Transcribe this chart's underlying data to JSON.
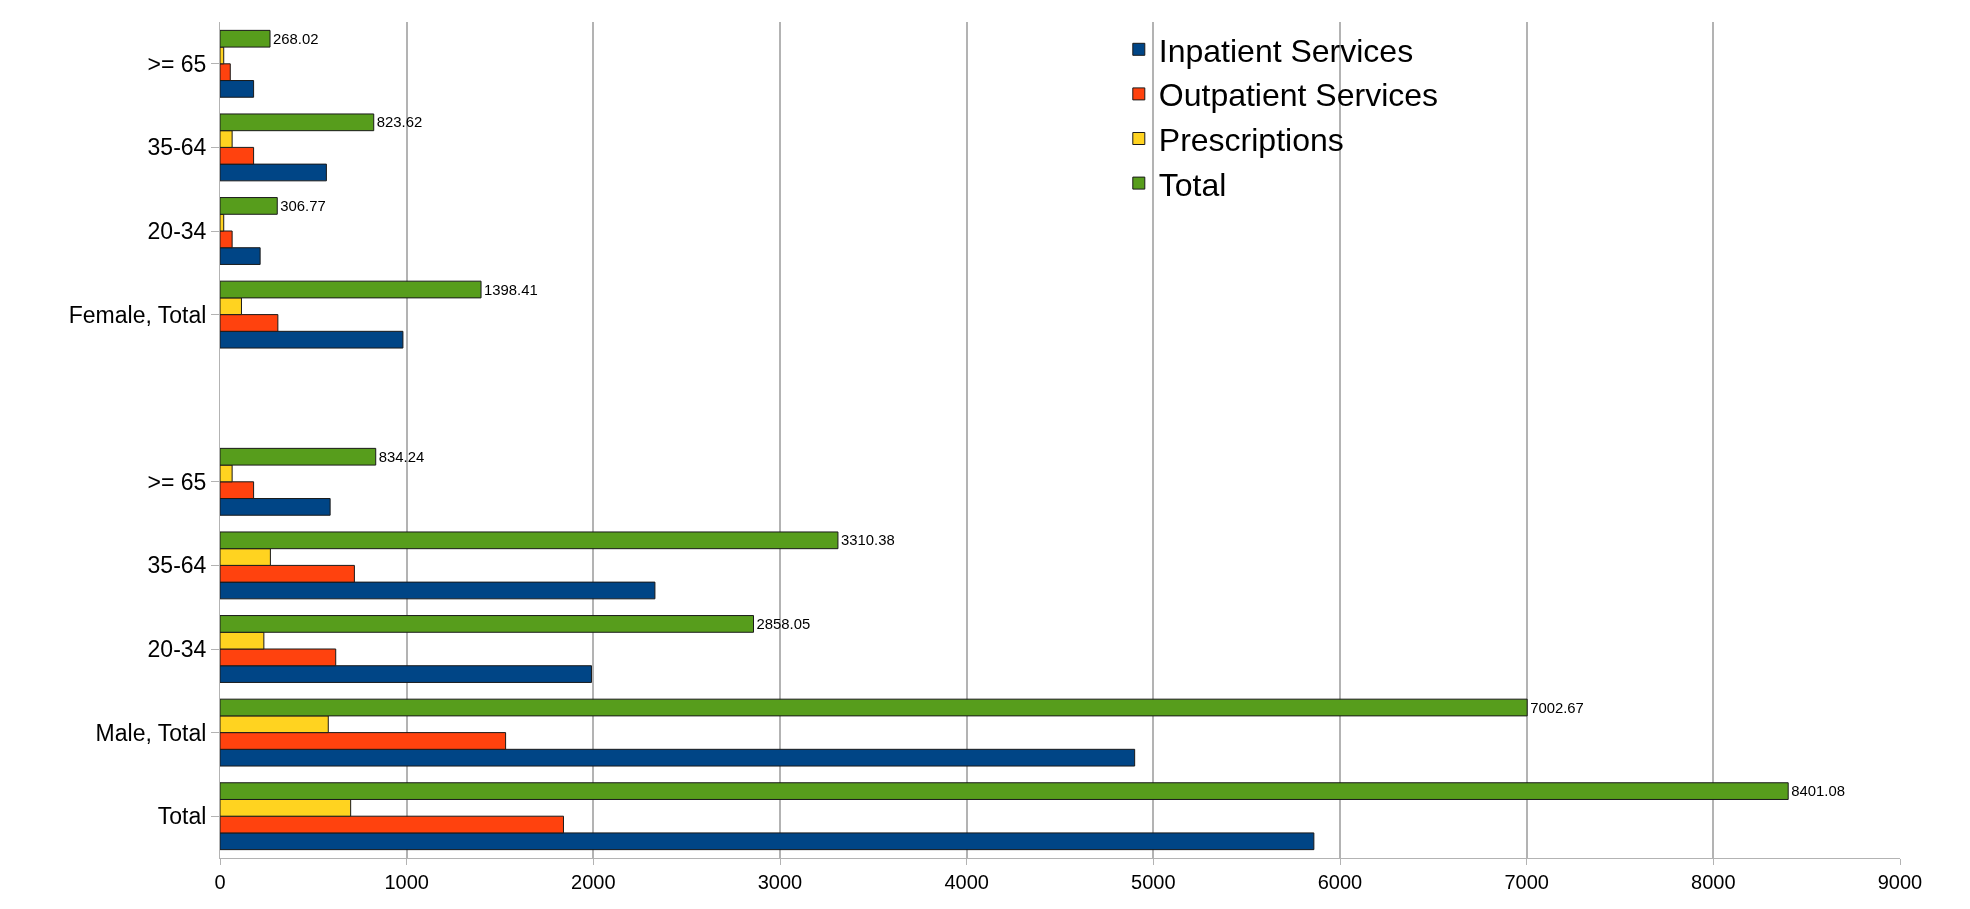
{
  "chart_data": {
    "type": "bar",
    "orientation": "horizontal",
    "categories": [
      ">= 65",
      "35-64",
      "20-34",
      "Female, Total",
      null,
      ">= 65",
      "35-64",
      "20-34",
      "Male, Total",
      "Total"
    ],
    "series": [
      {
        "name": "Inpatient Services",
        "color": "#004586",
        "values": [
          180,
          570,
          215,
          980,
          null,
          590,
          2330,
          1990,
          4900,
          5860
        ]
      },
      {
        "name": "Outpatient Services",
        "color": "#ff420e",
        "values": [
          55,
          180,
          65,
          310,
          null,
          180,
          720,
          620,
          1530,
          1840
        ]
      },
      {
        "name": "Prescriptions",
        "color": "#ffd320",
        "values": [
          20,
          65,
          20,
          115,
          null,
          65,
          270,
          235,
          580,
          700
        ]
      },
      {
        "name": "Total",
        "color": "#579d1c",
        "values": [
          268.02,
          823.62,
          306.77,
          1398.41,
          null,
          834.24,
          3310.38,
          2858.05,
          7002.67,
          8401.08
        ],
        "value_labels": [
          "268.02",
          "823.62",
          "306.77",
          "1398.41",
          null,
          "834.24",
          "3310.38",
          "2858.05",
          "7002.67",
          "8401.08"
        ]
      }
    ],
    "xlim": [
      0,
      9000
    ],
    "xticks": [
      0,
      1000,
      2000,
      3000,
      4000,
      5000,
      6000,
      7000,
      8000,
      9000
    ],
    "grid": "x",
    "legend": "top right"
  }
}
